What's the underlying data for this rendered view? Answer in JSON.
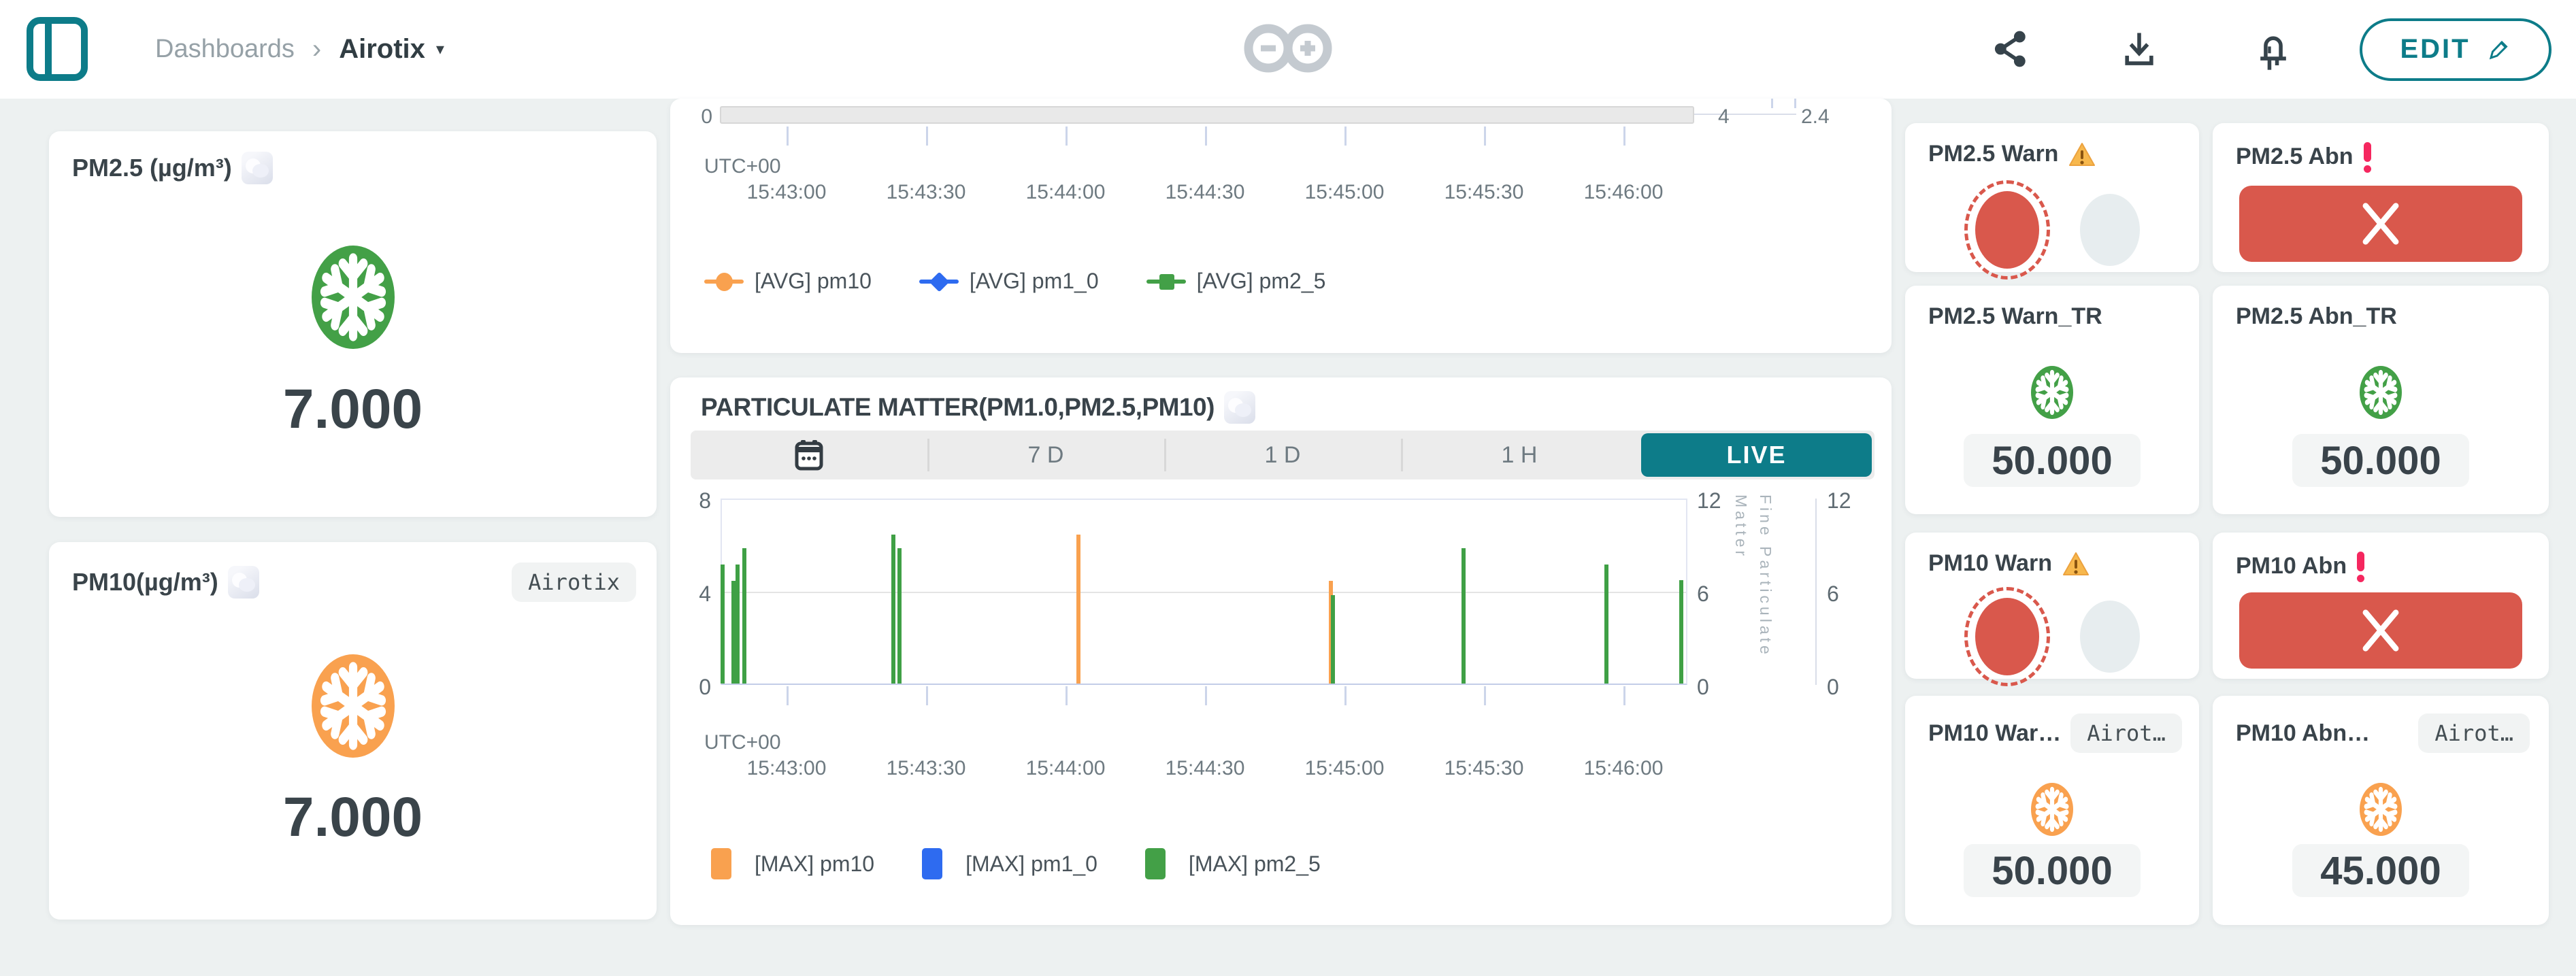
{
  "header": {
    "breadcrumb_root": "Dashboards",
    "breadcrumb_current": "Airotix",
    "edit_label": "EDIT",
    "accent_color": "#0d7c89"
  },
  "left_cards": {
    "pm25": {
      "title": "PM2.5 (µg/m³)",
      "value": "7.000",
      "icon": "snowflake-green"
    },
    "pm10": {
      "title": "PM10(µg/m³)",
      "badge": "Airotix",
      "value": "7.000",
      "icon": "snowflake-orange"
    }
  },
  "time_axis": {
    "timezone": "UTC+00",
    "labels": [
      "15:43:00",
      "15:43:30",
      "15:44:00",
      "15:44:30",
      "15:45:00",
      "15:45:30",
      "15:46:00"
    ]
  },
  "chart1": {
    "left_min_label": "0",
    "right1_min_label": "4",
    "right2_min_label": "2.4",
    "legend": [
      {
        "label": "[AVG] pm10",
        "color": "#f9a14f",
        "shape": "circle"
      },
      {
        "label": "[AVG] pm1_0",
        "color": "#2e6bf0",
        "shape": "diamond"
      },
      {
        "label": "[AVG] pm2_5",
        "color": "#43a047",
        "shape": "square"
      }
    ]
  },
  "chart2": {
    "title": "PARTICULATE MATTER(PM1.0,PM2.5,PM10)",
    "range_buttons": [
      "7 D",
      "1 D",
      "1 H",
      "LIVE"
    ],
    "active_button": "LIVE",
    "left_ticks": [
      "8",
      "4",
      "0"
    ],
    "right_ticks": [
      "12",
      "6",
      "0"
    ],
    "right_axis_title": "Fine Particulate Matter",
    "legend": [
      {
        "label": "[MAX] pm10",
        "color": "#f9a14f"
      },
      {
        "label": "[MAX] pm1_0",
        "color": "#2e6bf0"
      },
      {
        "label": "[MAX] pm2_5",
        "color": "#43a047"
      }
    ]
  },
  "chart_data": [
    {
      "type": "line",
      "title": "",
      "note": "upper chart clipped by scroll; only axis bottoms visible",
      "x": [
        "15:43:00",
        "15:43:30",
        "15:44:00",
        "15:44:30",
        "15:45:00",
        "15:45:30",
        "15:46:00"
      ],
      "timezone": "UTC+00",
      "visible_axis_labels": {
        "left_bottom": "0",
        "right1_bottom": "4",
        "right2_bottom": "2.4"
      },
      "series": [
        {
          "name": "[AVG] pm10",
          "color": "#f9a14f",
          "values": []
        },
        {
          "name": "[AVG] pm1_0",
          "color": "#2e6bf0",
          "values": []
        },
        {
          "name": "[AVG] pm2_5",
          "color": "#43a047",
          "values": []
        }
      ]
    },
    {
      "type": "bar",
      "title": "PARTICULATE MATTER(PM1.0,PM2.5,PM10)",
      "timezone": "UTC+00",
      "xlabel": "",
      "ylabel_right": "Fine Particulate Matter",
      "ylim_left": [
        0,
        8
      ],
      "ylim_right": [
        0,
        12
      ],
      "x_tick_labels": [
        "15:43:00",
        "15:43:30",
        "15:44:00",
        "15:44:30",
        "15:45:00",
        "15:45:30",
        "15:46:00"
      ],
      "legend_position": "bottom",
      "grid": "horizontal at 4",
      "bars": [
        {
          "series": "pm2_5",
          "time": "15:42:46",
          "value": 5.1,
          "x_frac": 0.001
        },
        {
          "series": "pm2_5",
          "time": "15:42:48",
          "value": 4.4,
          "x_frac": 0.012
        },
        {
          "series": "pm2_5",
          "time": "15:42:49",
          "value": 5.1,
          "x_frac": 0.016
        },
        {
          "series": "pm2_5",
          "time": "15:42:51",
          "value": 5.8,
          "x_frac": 0.023
        },
        {
          "series": "pm2_5",
          "time": "15:43:23",
          "value": 6.4,
          "x_frac": 0.177
        },
        {
          "series": "pm2_5",
          "time": "15:43:24",
          "value": 5.8,
          "x_frac": 0.184
        },
        {
          "series": "pm10",
          "time": "15:44:03",
          "value": 6.4,
          "x_frac": 0.369
        },
        {
          "series": "pm10",
          "time": "15:44:57",
          "value": 4.4,
          "x_frac": 0.63
        },
        {
          "series": "pm2_5",
          "time": "15:44:57",
          "value": 3.8,
          "x_frac": 0.632
        },
        {
          "series": "pm2_5",
          "time": "15:45:25",
          "value": 5.8,
          "x_frac": 0.767
        },
        {
          "series": "pm2_5",
          "time": "15:45:56",
          "value": 5.1,
          "x_frac": 0.915
        },
        {
          "series": "pm2_5",
          "time": "15:46:12",
          "value": 4.45,
          "x_frac": 0.992
        }
      ]
    }
  ],
  "right_panel": {
    "cards": [
      {
        "title": "PM2.5 Warn",
        "title_icon": "warning-triangle",
        "type": "led-indicator"
      },
      {
        "title": "PM2.5 Abn",
        "title_icon": "exclamation",
        "type": "alarm-button"
      },
      {
        "title": "PM2.5 Warn_TR",
        "value": "50.000",
        "icon": "snowflake-green",
        "type": "value"
      },
      {
        "title": "PM2.5 Abn_TR",
        "value": "50.000",
        "icon": "snowflake-green",
        "type": "value"
      },
      {
        "title": "PM10 Warn",
        "title_icon": "warning-triangle",
        "type": "led-indicator"
      },
      {
        "title": "PM10 Abn",
        "title_icon": "exclamation",
        "type": "alarm-button"
      },
      {
        "title": "PM10 War…",
        "badge": "Airot…",
        "value": "50.000",
        "icon": "snowflake-orange",
        "type": "value"
      },
      {
        "title": "PM10 Abn…",
        "badge": "Airot…",
        "value": "45.000",
        "icon": "snowflake-orange",
        "type": "value"
      }
    ]
  }
}
